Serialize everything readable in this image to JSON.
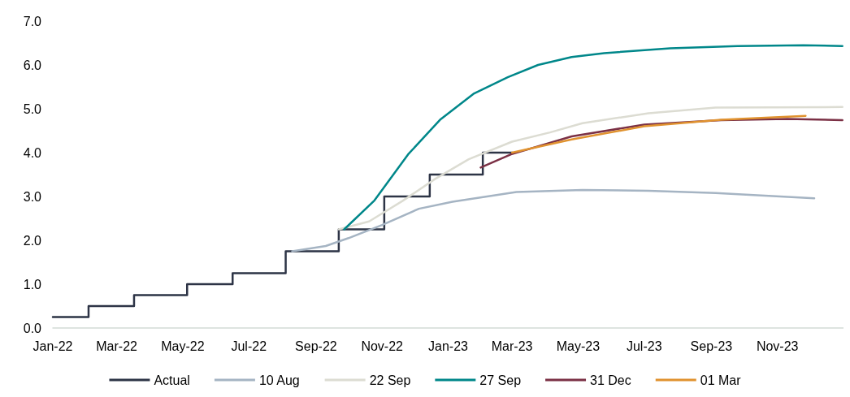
{
  "chart_data": {
    "type": "line",
    "xlim": [
      "2022-01-01",
      "2024-01-01"
    ],
    "ylim": [
      0,
      7
    ],
    "xticks": [
      {
        "value": "2022-01-01",
        "label": "Jan-22"
      },
      {
        "value": "2022-03-01",
        "label": "Mar-22"
      },
      {
        "value": "2022-05-01",
        "label": "May-22"
      },
      {
        "value": "2022-07-01",
        "label": "Jul-22"
      },
      {
        "value": "2022-09-01",
        "label": "Sep-22"
      },
      {
        "value": "2022-11-01",
        "label": "Nov-22"
      },
      {
        "value": "2023-01-01",
        "label": "Jan-23"
      },
      {
        "value": "2023-03-01",
        "label": "Mar-23"
      },
      {
        "value": "2023-05-01",
        "label": "May-23"
      },
      {
        "value": "2023-07-01",
        "label": "Jul-23"
      },
      {
        "value": "2023-09-01",
        "label": "Sep-23"
      },
      {
        "value": "2023-11-01",
        "label": "Nov-23"
      }
    ],
    "yticks": [
      {
        "value": 0,
        "label": "0.0"
      },
      {
        "value": 1,
        "label": "1.0"
      },
      {
        "value": 2,
        "label": "2.0"
      },
      {
        "value": 3,
        "label": "3.0"
      },
      {
        "value": 4,
        "label": "4.0"
      },
      {
        "value": 5,
        "label": "5.0"
      },
      {
        "value": 6,
        "label": "6.0"
      },
      {
        "value": 7,
        "label": "7.0"
      }
    ],
    "grid": false,
    "legend": "bottom",
    "marker": "none",
    "line_style": "solid",
    "series": [
      {
        "name": "Actual",
        "type": "step",
        "color": "#2d3446",
        "x": [
          "2022-01-01",
          "2022-02-03",
          "2022-03-17",
          "2022-05-05",
          "2022-06-16",
          "2022-08-04",
          "2022-09-22",
          "2022-11-03",
          "2022-12-15",
          "2023-02-02",
          "2023-03-01"
        ],
        "values": [
          0.25,
          0.5,
          0.75,
          1.0,
          1.25,
          1.75,
          2.25,
          3.0,
          3.5,
          4.0,
          4.0
        ]
      },
      {
        "name": "10 Aug",
        "color": "#a5b4c3",
        "x": [
          "2022-08-10",
          "2022-09-10",
          "2022-10-01",
          "2022-11-01",
          "2022-12-05",
          "2023-01-05",
          "2023-03-05",
          "2023-05-05",
          "2023-07-05",
          "2023-09-05",
          "2023-12-05"
        ],
        "values": [
          1.75,
          1.87,
          2.05,
          2.35,
          2.72,
          2.88,
          3.1,
          3.15,
          3.13,
          3.08,
          2.96
        ]
      },
      {
        "name": "22 Sep",
        "color": "#dcdcd2",
        "x": [
          "2022-09-22",
          "2022-10-20",
          "2022-11-20",
          "2022-12-20",
          "2023-01-20",
          "2023-03-01",
          "2023-04-05",
          "2023-05-05",
          "2023-07-05",
          "2023-09-05",
          "2023-12-31"
        ],
        "values": [
          2.25,
          2.43,
          2.9,
          3.4,
          3.85,
          4.25,
          4.46,
          4.67,
          4.9,
          5.03,
          5.04
        ]
      },
      {
        "name": "27 Sep",
        "color": "#00878a",
        "x": [
          "2022-09-27",
          "2022-10-25",
          "2022-11-25",
          "2022-12-25",
          "2023-01-25",
          "2023-02-25",
          "2023-03-25",
          "2023-04-25",
          "2023-05-25",
          "2023-07-25",
          "2023-09-25",
          "2023-11-25",
          "2023-12-31"
        ],
        "values": [
          2.25,
          2.91,
          3.96,
          4.76,
          5.35,
          5.72,
          6.0,
          6.18,
          6.27,
          6.38,
          6.43,
          6.45,
          6.43
        ]
      },
      {
        "name": "31 Dec",
        "color": "#7b3045",
        "x": [
          "2023-01-31",
          "2023-02-28",
          "2023-04-25",
          "2023-07-01",
          "2023-09-10",
          "2023-11-10",
          "2023-12-31"
        ],
        "values": [
          3.66,
          3.96,
          4.37,
          4.64,
          4.74,
          4.77,
          4.74
        ]
      },
      {
        "name": "01 Mar",
        "color": "#e0922f",
        "x": [
          "2023-03-01",
          "2023-04-25",
          "2023-07-01",
          "2023-09-10",
          "2023-11-27"
        ],
        "values": [
          4.0,
          4.3,
          4.6,
          4.75,
          4.84
        ]
      }
    ]
  }
}
